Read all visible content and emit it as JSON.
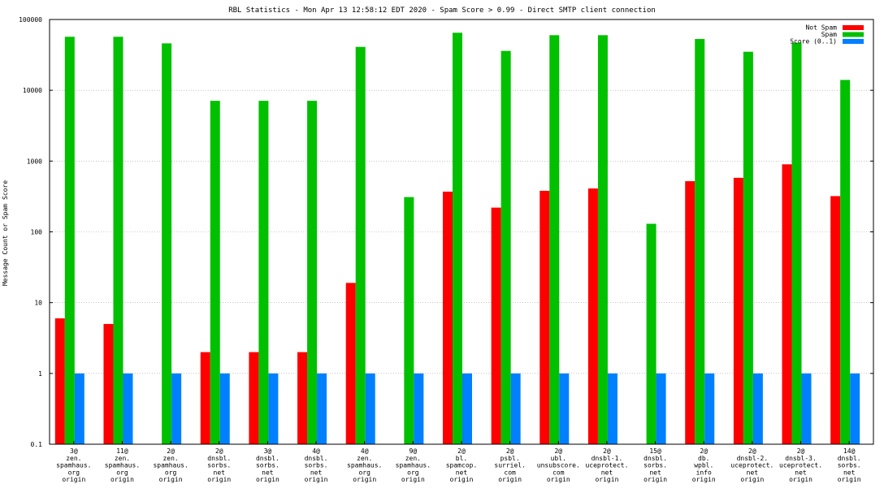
{
  "chart_data": {
    "type": "bar",
    "title": "RBL Statistics - Mon Apr 13 12:58:12 EDT 2020 - Spam Score > 0.99 - Direct SMTP client connection",
    "xlabel": "",
    "ylabel": "Message Count or Spam Score",
    "yscale": "log",
    "ylim": [
      0.1,
      100000
    ],
    "yticks": [
      "0.1",
      "1",
      "10",
      "100",
      "1000",
      "10000",
      "100000"
    ],
    "grid": true,
    "legend_position": "top-right",
    "categories": [
      [
        "3@",
        "zen.",
        "spamhaus.",
        "org",
        "origin"
      ],
      [
        "11@",
        "zen.",
        "spamhaus.",
        "org",
        "origin"
      ],
      [
        "2@",
        "zen.",
        "spamhaus.",
        "org",
        "origin"
      ],
      [
        "2@",
        "dnsbl.",
        "sorbs.",
        "net",
        "origin"
      ],
      [
        "3@",
        "dnsbl.",
        "sorbs.",
        "net",
        "origin"
      ],
      [
        "4@",
        "dnsbl.",
        "sorbs.",
        "net",
        "origin"
      ],
      [
        "4@",
        "zen.",
        "spamhaus.",
        "org",
        "origin"
      ],
      [
        "9@",
        "zen.",
        "spamhaus.",
        "org",
        "origin"
      ],
      [
        "2@",
        "bl.",
        "spamcop.",
        "net",
        "origin"
      ],
      [
        "2@",
        "psbl.",
        "surriel.",
        "com",
        "origin"
      ],
      [
        "2@",
        "ubl.",
        "unsubscore.",
        "com",
        "origin"
      ],
      [
        "2@",
        "dnsbl-1.",
        "uceprotect.",
        "net",
        "origin"
      ],
      [
        "15@",
        "dnsbl.",
        "sorbs.",
        "net",
        "origin"
      ],
      [
        "2@",
        "db.",
        "wpbl.",
        "info",
        "origin"
      ],
      [
        "2@",
        "dnsbl-2.",
        "uceprotect.",
        "net",
        "origin"
      ],
      [
        "2@",
        "dnsbl-3.",
        "uceprotect.",
        "net",
        "origin"
      ],
      [
        "14@",
        "dnsbl.",
        "sorbs.",
        "net",
        "origin"
      ]
    ],
    "series": [
      {
        "name": "Not Spam",
        "color": "#ff0000",
        "values": [
          6,
          5,
          null,
          2,
          2,
          2,
          19,
          null,
          370,
          220,
          380,
          410,
          null,
          520,
          580,
          900,
          320
        ]
      },
      {
        "name": "Spam",
        "color": "#00c000",
        "values": [
          57000,
          57000,
          46000,
          7100,
          7100,
          7100,
          41000,
          310,
          65000,
          36000,
          60000,
          60000,
          130,
          53000,
          35000,
          47000,
          14000
        ]
      },
      {
        "name": "Score (0..1)",
        "color": "#0080ff",
        "values": [
          1,
          1,
          1,
          1,
          1,
          1,
          1,
          1,
          1,
          1,
          1,
          1,
          1,
          1,
          1,
          1,
          1
        ]
      }
    ]
  }
}
